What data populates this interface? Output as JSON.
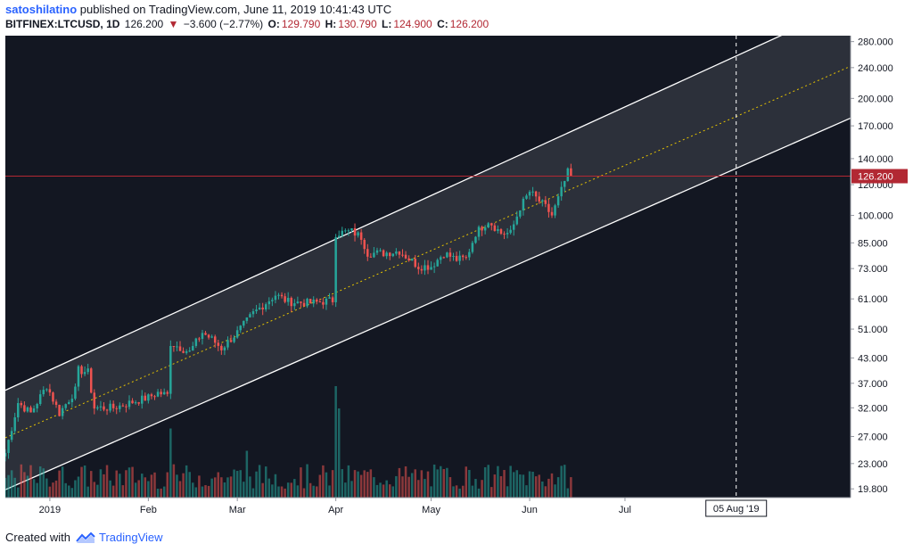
{
  "header": {
    "author": "satoshilatino",
    "published": " published on TradingView.com, June 11, 2019 10:41:43 UTC"
  },
  "ticker": {
    "symbol": "BITFINEX:LTCUSD, 1D",
    "last": "126.200",
    "arrow": "▼",
    "change": "−3.600 (−2.77%)",
    "o_label": "O:",
    "o": "129.790",
    "h_label": "H:",
    "h": "130.790",
    "l_label": "L:",
    "l": "124.900",
    "c_label": "C:",
    "c": "126.200"
  },
  "footer": {
    "prefix": "Created with",
    "brand": "TradingView",
    "logo_icon": "tradingview-logo-icon"
  },
  "colors": {
    "up": "#26a69a",
    "down": "#ef5350",
    "background": "#131722",
    "channel": "#ffffff",
    "midline": "#e6c300",
    "price_line": "#b22833"
  },
  "chart_data": {
    "type": "candlestick",
    "title": "BITFINEX:LTCUSD, 1D",
    "scale": "log",
    "ylim": [
      18.8,
      290
    ],
    "y_ticks": [
      "280.000",
      "240.000",
      "200.000",
      "170.000",
      "140.000",
      "120.000",
      "100.000",
      "85.000",
      "73.000",
      "61.000",
      "51.000",
      "43.000",
      "37.000",
      "32.000",
      "27.000",
      "23.000",
      "19.800"
    ],
    "x_ticks": [
      "2019",
      "Feb",
      "Mar",
      "Apr",
      "May",
      "Jun",
      "Jul"
    ],
    "x_range_days": [
      -14,
      252
    ],
    "last_price": "126.200",
    "crosshair_label": "05 Aug '19",
    "crosshair_day": 216,
    "tick_days": {
      "2019": 0,
      "Feb": 31,
      "Mar": 59,
      "Apr": 90,
      "May": 120,
      "Jun": 151,
      "Jul": 181
    },
    "channel": {
      "upper": [
        {
          "day": -14,
          "price": 35.5
        },
        {
          "day": 230,
          "price": 290
        }
      ],
      "lower": [
        {
          "day": -14,
          "price": 19.7
        },
        {
          "day": 252,
          "price": 178
        }
      ],
      "middle": [
        {
          "day": -14,
          "price": 26.8
        },
        {
          "day": 252,
          "price": 242
        }
      ]
    },
    "keypoints": [
      {
        "day": -14,
        "price": 24.5
      },
      {
        "day": -10,
        "price": 33.0
      },
      {
        "day": -6,
        "price": 31.0
      },
      {
        "day": -1,
        "price": 36.5
      },
      {
        "day": 3,
        "price": 31.0
      },
      {
        "day": 8,
        "price": 35.5
      },
      {
        "day": 9,
        "price": 40.0
      },
      {
        "day": 12,
        "price": 39.5
      },
      {
        "day": 14,
        "price": 32.0
      },
      {
        "day": 20,
        "price": 32.0
      },
      {
        "day": 28,
        "price": 33.5
      },
      {
        "day": 31,
        "price": 34.0
      },
      {
        "day": 34,
        "price": 35.0
      },
      {
        "day": 37,
        "price": 34.5
      },
      {
        "day": 38,
        "price": 47.0
      },
      {
        "day": 44,
        "price": 44.5
      },
      {
        "day": 48,
        "price": 50.0
      },
      {
        "day": 51,
        "price": 48.0
      },
      {
        "day": 54,
        "price": 45.5
      },
      {
        "day": 59,
        "price": 50.0
      },
      {
        "day": 64,
        "price": 56.0
      },
      {
        "day": 71,
        "price": 62.5
      },
      {
        "day": 75,
        "price": 60.0
      },
      {
        "day": 82,
        "price": 59.5
      },
      {
        "day": 89,
        "price": 60.5
      },
      {
        "day": 90,
        "price": 90.0
      },
      {
        "day": 95,
        "price": 91.0
      },
      {
        "day": 98,
        "price": 88.0
      },
      {
        "day": 100,
        "price": 80.0
      },
      {
        "day": 105,
        "price": 80.0
      },
      {
        "day": 110,
        "price": 81.0
      },
      {
        "day": 116,
        "price": 74.0
      },
      {
        "day": 120,
        "price": 74.0
      },
      {
        "day": 124,
        "price": 80.0
      },
      {
        "day": 128,
        "price": 77.0
      },
      {
        "day": 131,
        "price": 77.5
      },
      {
        "day": 134,
        "price": 90.0
      },
      {
        "day": 138,
        "price": 97.0
      },
      {
        "day": 142,
        "price": 90.0
      },
      {
        "day": 145,
        "price": 90.0
      },
      {
        "day": 148,
        "price": 105.0
      },
      {
        "day": 151,
        "price": 115.0
      },
      {
        "day": 156,
        "price": 105.0
      },
      {
        "day": 158,
        "price": 100.0
      },
      {
        "day": 161,
        "price": 116.0
      },
      {
        "day": 163,
        "price": 129.0
      },
      {
        "day": 164,
        "price": 126.2
      }
    ],
    "volume_spikes": [
      {
        "day": 38,
        "level": 0.62
      },
      {
        "day": 90,
        "level": 1.0
      },
      {
        "day": 91,
        "level": 0.8
      },
      {
        "day": 62,
        "level": 0.42
      }
    ]
  }
}
